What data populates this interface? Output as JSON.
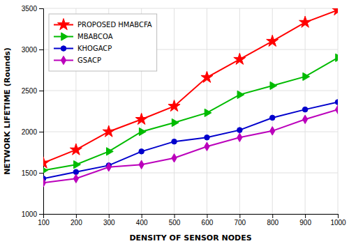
{
  "chart_data": {
    "type": "line",
    "xlabel": "DENSITY OF SENSOR NODES",
    "ylabel": "NETWORK LIFETIME (Rounds)",
    "x": [
      100,
      200,
      300,
      400,
      500,
      600,
      700,
      800,
      900,
      1000
    ],
    "series": [
      {
        "name": "PROPOSED HMABCFA",
        "color": "#FF0000",
        "marker": "star",
        "values": [
          1620,
          1780,
          2000,
          2150,
          2310,
          2660,
          2880,
          3100,
          3330,
          3480
        ]
      },
      {
        "name": "MBABCOA",
        "color": "#00BB00",
        "marker": "triangle-right",
        "values": [
          1530,
          1600,
          1760,
          2000,
          2110,
          2230,
          2450,
          2560,
          2670,
          2900
        ]
      },
      {
        "name": "KHOGACP",
        "color": "#0000CC",
        "marker": "circle",
        "values": [
          1430,
          1510,
          1590,
          1760,
          1880,
          1930,
          2020,
          2170,
          2270,
          2360
        ]
      },
      {
        "name": "GSACP",
        "color": "#BB00BB",
        "marker": "diamond",
        "values": [
          1380,
          1430,
          1570,
          1600,
          1680,
          1820,
          1930,
          2010,
          2150,
          2270
        ]
      }
    ],
    "xlim": [
      100,
      1000
    ],
    "ylim": [
      1000,
      3500
    ],
    "xticks": [
      100,
      200,
      300,
      400,
      500,
      600,
      700,
      800,
      900,
      1000
    ],
    "yticks": [
      1000,
      1500,
      2000,
      2500,
      3000,
      3500
    ],
    "grid": true,
    "legend": "upper left"
  }
}
